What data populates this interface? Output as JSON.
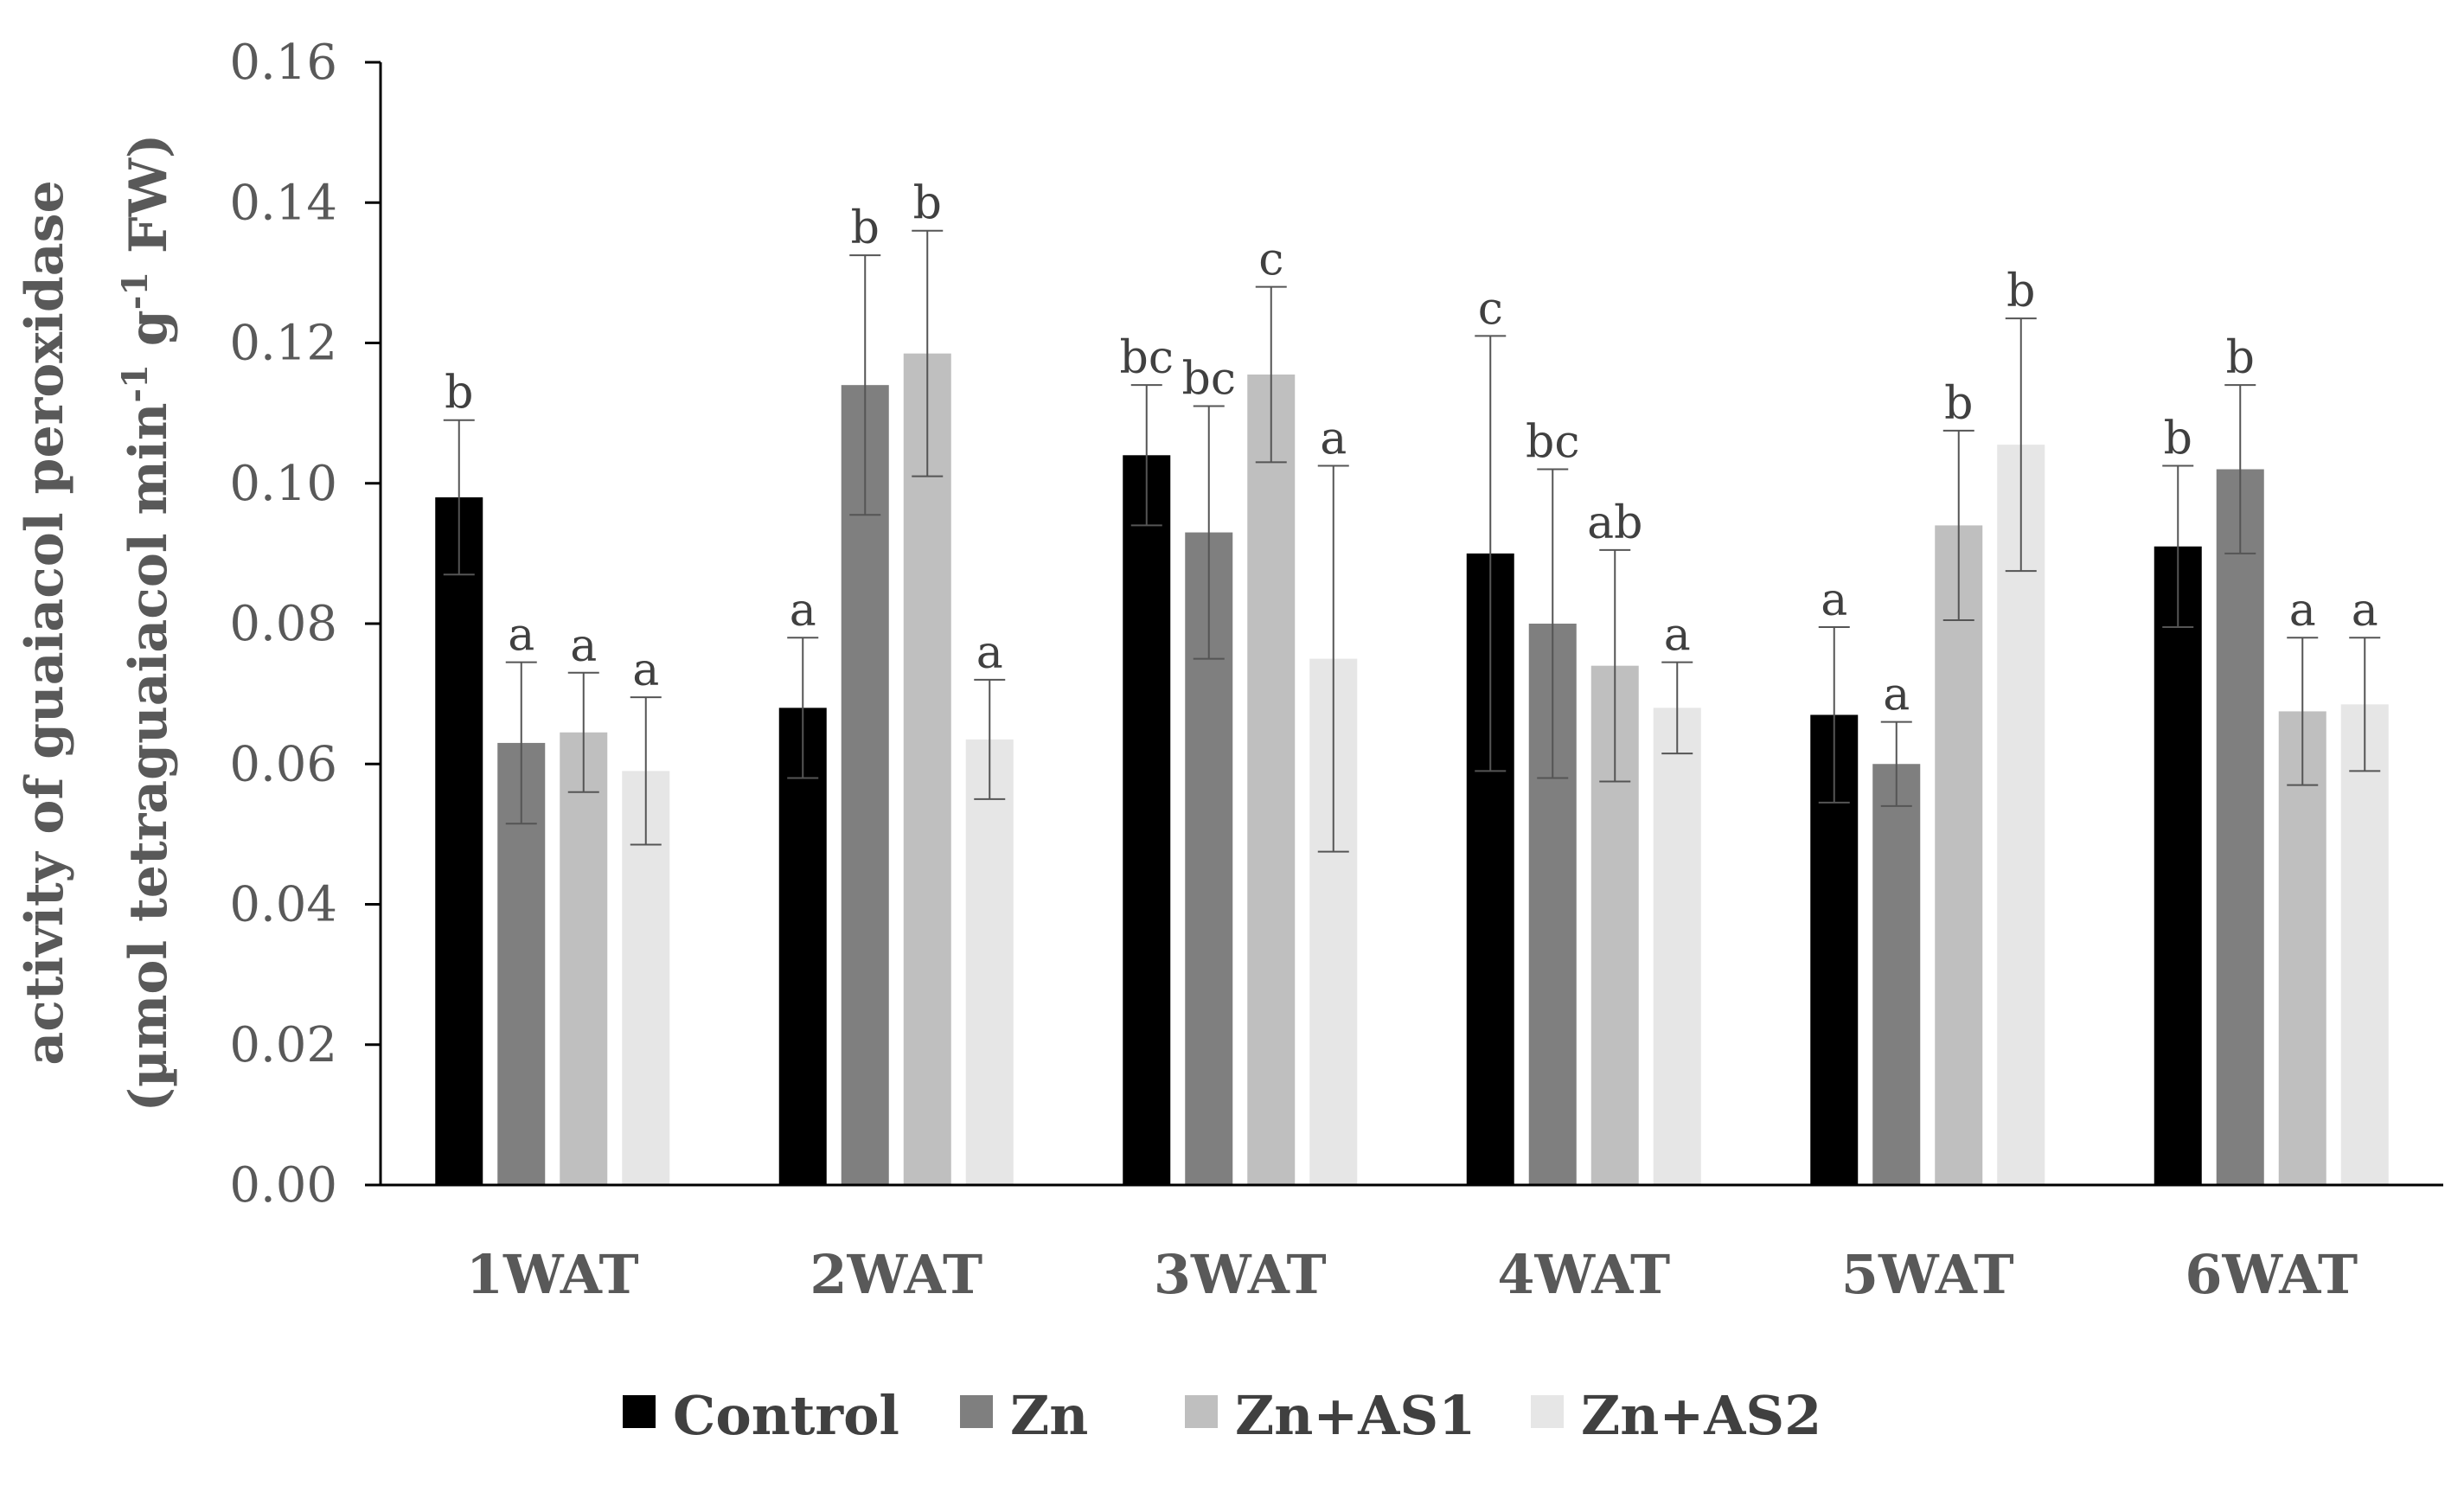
{
  "chart_data": {
    "type": "bar",
    "ylabel_line1": "activity of guaiacol peroxidase",
    "ylabel_line2": "(µmol tetraguaiacol min-1 g-1 FW)",
    "ylabel_line2_parts": {
      "pre": "(µmol tetraguaiacol min",
      "sup1": "-1",
      "mid": " g",
      "sup2": "-1",
      "post": " FW)"
    },
    "ylim": [
      0,
      0.16
    ],
    "yticks": [
      "0.00",
      "0.02",
      "0.04",
      "0.06",
      "0.08",
      "0.10",
      "0.12",
      "0.14",
      "0.16"
    ],
    "ytick_values": [
      0,
      0.02,
      0.04,
      0.06,
      0.08,
      0.1,
      0.12,
      0.14,
      0.16
    ],
    "categories": [
      "1WAT",
      "2WAT",
      "3WAT",
      "4WAT",
      "5WAT",
      "6WAT"
    ],
    "legend_position": "bottom",
    "grid": false,
    "series": [
      {
        "name": "Control",
        "color": "#000000",
        "values": [
          0.098,
          0.068,
          0.104,
          0.09,
          0.067,
          0.091
        ],
        "errors": [
          0.011,
          0.01,
          0.01,
          0.031,
          0.0125,
          0.0115
        ],
        "labels": [
          "b",
          "a",
          "bc",
          "c",
          "a",
          "b"
        ]
      },
      {
        "name": "Zn",
        "color": "#7f7f7f",
        "values": [
          0.063,
          0.114,
          0.093,
          0.08,
          0.06,
          0.102
        ],
        "errors": [
          0.0115,
          0.0185,
          0.018,
          0.022,
          0.006,
          0.012
        ],
        "labels": [
          "a",
          "b",
          "bc",
          "bc",
          "a",
          "b"
        ]
      },
      {
        "name": "Zn+AS1",
        "color": "#bfbfbf",
        "values": [
          0.0645,
          0.1185,
          0.1155,
          0.074,
          0.094,
          0.0675
        ],
        "errors": [
          0.0085,
          0.0175,
          0.0125,
          0.0165,
          0.0135,
          0.0105
        ],
        "labels": [
          "a",
          "b",
          "c",
          "ab",
          "b",
          "a"
        ]
      },
      {
        "name": "Zn+AS2",
        "color": "#e6e6e6",
        "values": [
          0.059,
          0.0635,
          0.075,
          0.068,
          0.1055,
          0.0685
        ],
        "errors": [
          0.0105,
          0.0085,
          0.0275,
          0.0065,
          0.018,
          0.0095
        ],
        "labels": [
          "a",
          "a",
          "a",
          "a",
          "b",
          "a"
        ]
      }
    ]
  }
}
